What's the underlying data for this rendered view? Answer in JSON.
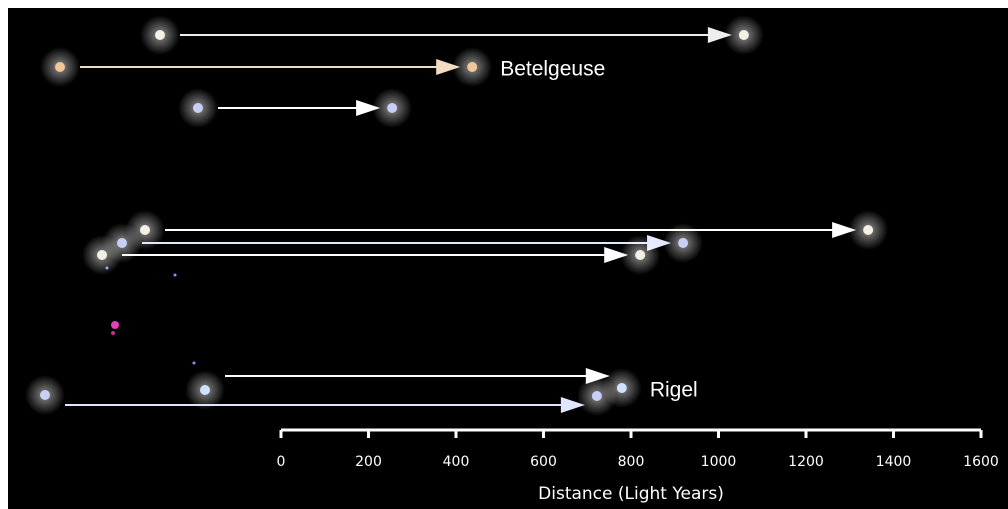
{
  "chart_data": {
    "type": "arrow",
    "categories": [
      null,
      "Betelgeuse",
      null,
      null,
      null,
      null,
      "Rigel",
      null
    ],
    "values": [
      1058,
      437,
      254,
      1342,
      919,
      821,
      779,
      722
    ],
    "colors": [
      "#f4f1e4",
      "#f1c79a",
      "#c8cff5",
      "#f4f1e4",
      "#c8cff5",
      "#f4f1e4",
      "#cfe3ff",
      "#c8cff5"
    ],
    "arrow_colors": [
      "#eeeeee",
      "#f2dcc0",
      "#ffffff",
      "#ffffff",
      "#e4e8ff",
      "#ffffff",
      "#ffffff",
      "#e0e6ff"
    ],
    "xlim": [
      0,
      1600
    ],
    "xticks": [
      0,
      200,
      400,
      600,
      800,
      1000,
      1200,
      1400,
      1600
    ],
    "xlabel": "Distance (Light Years)"
  }
}
